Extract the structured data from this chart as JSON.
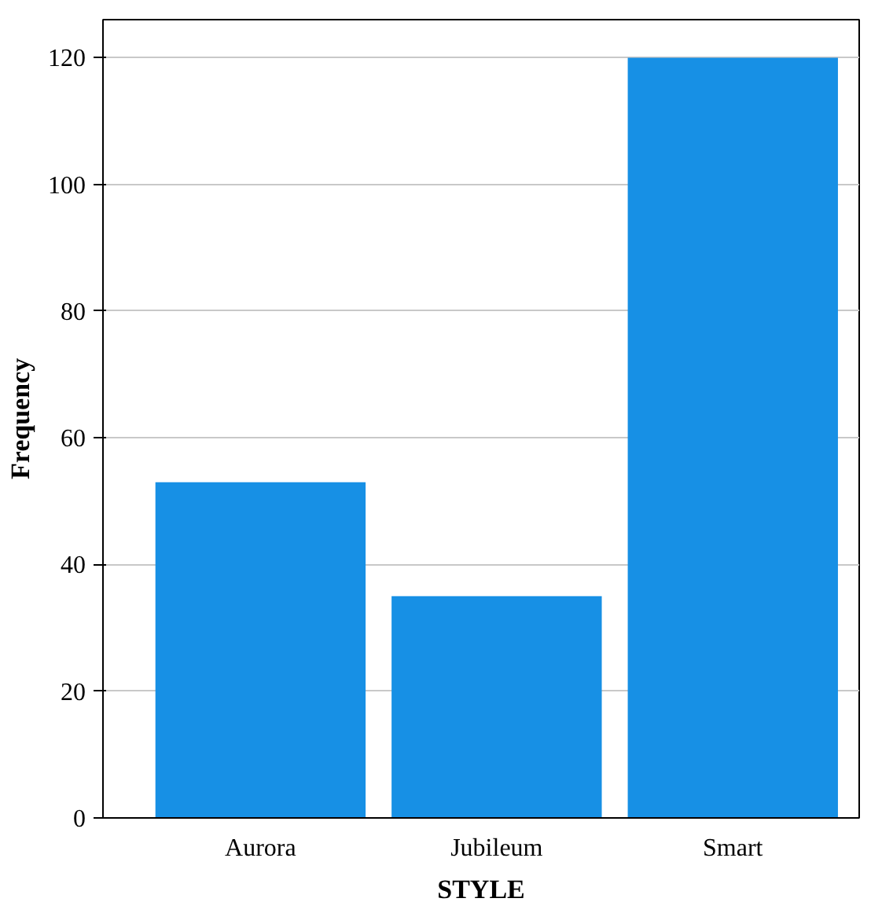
{
  "chart_data": {
    "type": "bar",
    "xlabel": "STYLE",
    "ylabel": "Frequency",
    "categories": [
      "Aurora",
      "Jubileum",
      "Smart"
    ],
    "values": [
      53,
      35,
      120
    ],
    "color": "#1790e5",
    "ylim": [
      0,
      126
    ],
    "yticks": [
      0,
      20,
      40,
      60,
      80,
      100,
      120
    ],
    "grid": "y"
  }
}
